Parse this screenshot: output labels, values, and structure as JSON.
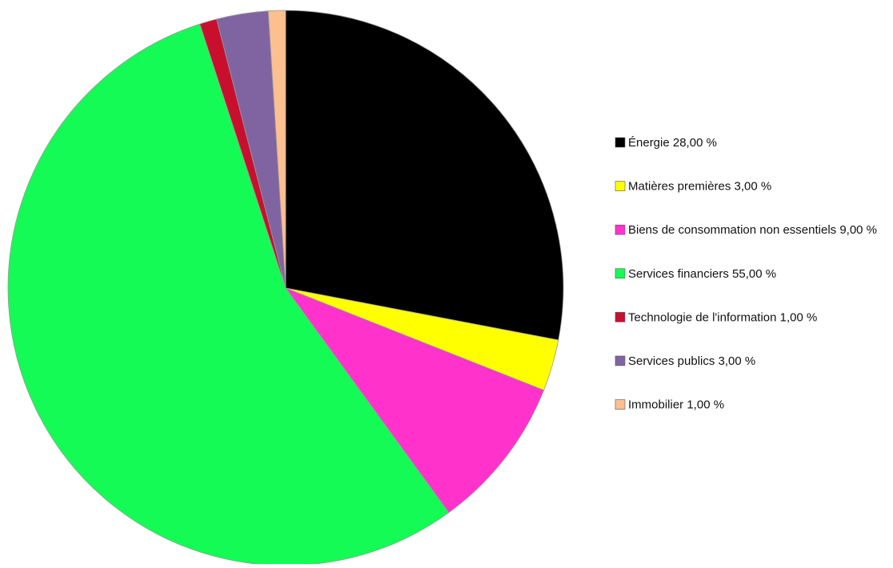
{
  "chart_data": {
    "type": "pie",
    "title": "",
    "start_angle_deg": 0,
    "direction": "clockwise",
    "legend_position": "right",
    "slices": [
      {
        "label": "Énergie 28,00 %",
        "name": "Énergie",
        "value": 28.0,
        "color": "#000000"
      },
      {
        "label": "Matières premières 3,00 %",
        "name": "Matières premières",
        "value": 3.0,
        "color": "#ffff00"
      },
      {
        "label": "Biens de consommation non essentiels 9,00 %",
        "name": "Biens de consommation non essentiels",
        "value": 9.0,
        "color": "#ff33cc"
      },
      {
        "label": "Services financiers 55,00 %",
        "name": "Services financiers",
        "value": 55.0,
        "color": "#14fb55"
      },
      {
        "label": "Technologie de l'information 1,00 %",
        "name": "Technologie de l'information",
        "value": 1.0,
        "color": "#c8102e"
      },
      {
        "label": "Services publics 3,00 %",
        "name": "Services publics",
        "value": 3.0,
        "color": "#8064a2"
      },
      {
        "label": "Immobilier 1,00 %",
        "name": "Immobilier",
        "value": 1.0,
        "color": "#fcbf8f"
      }
    ]
  }
}
